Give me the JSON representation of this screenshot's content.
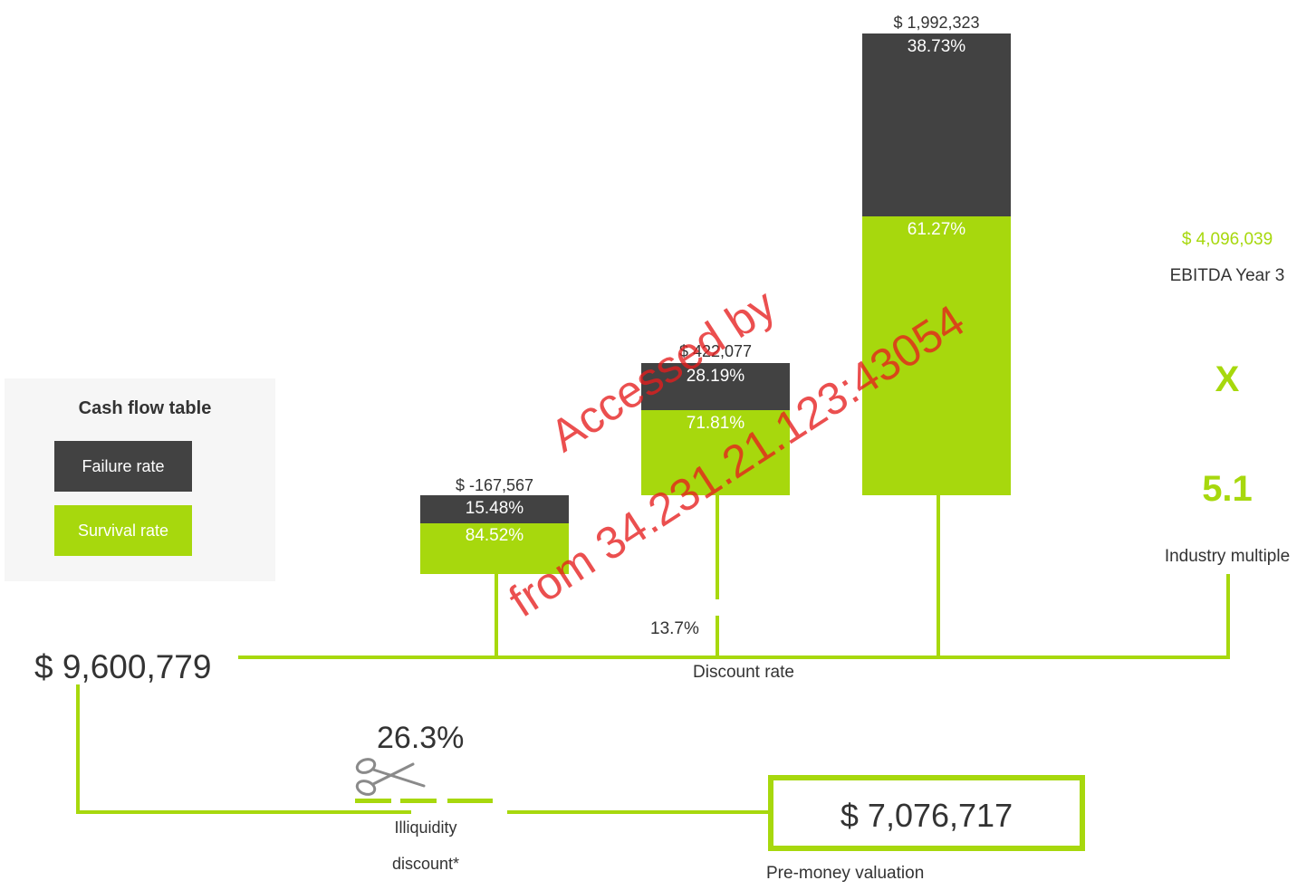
{
  "legend": {
    "title": "Cash flow table",
    "failure_label": "Failure rate",
    "survival_label": "Survival rate"
  },
  "years": [
    {
      "amount": "$ -167,567",
      "failure_pct": "15.48%",
      "survival_pct": "84.52%"
    },
    {
      "amount": "$ 422,077",
      "failure_pct": "28.19%",
      "survival_pct": "71.81%"
    },
    {
      "amount": "$ 1,992,323",
      "failure_pct": "38.73%",
      "survival_pct": "61.27%"
    }
  ],
  "ebitda": {
    "value": "$ 4,096,039",
    "label": "EBITDA Year 3"
  },
  "multiply_symbol": "X",
  "industry_multiple": {
    "value": "5.1",
    "label": "Industry multiple"
  },
  "discount_rate": {
    "value": "13.7%",
    "label": "Discount rate"
  },
  "total_value": "$ 9,600,779",
  "illiquidity": {
    "value": "26.3%",
    "label_line1": "Illiquidity",
    "label_line2": "discount*"
  },
  "pre_money": {
    "value": "$ 7,076,717",
    "label": "Pre-money valuation"
  },
  "watermark": {
    "line1": "Accessed by",
    "line2": "from 34.231.21.123:43054"
  },
  "colors": {
    "green": "#a7d80d",
    "dark": "#424242",
    "text": "#333333"
  },
  "icons": {
    "scissors": "scissors-icon"
  }
}
